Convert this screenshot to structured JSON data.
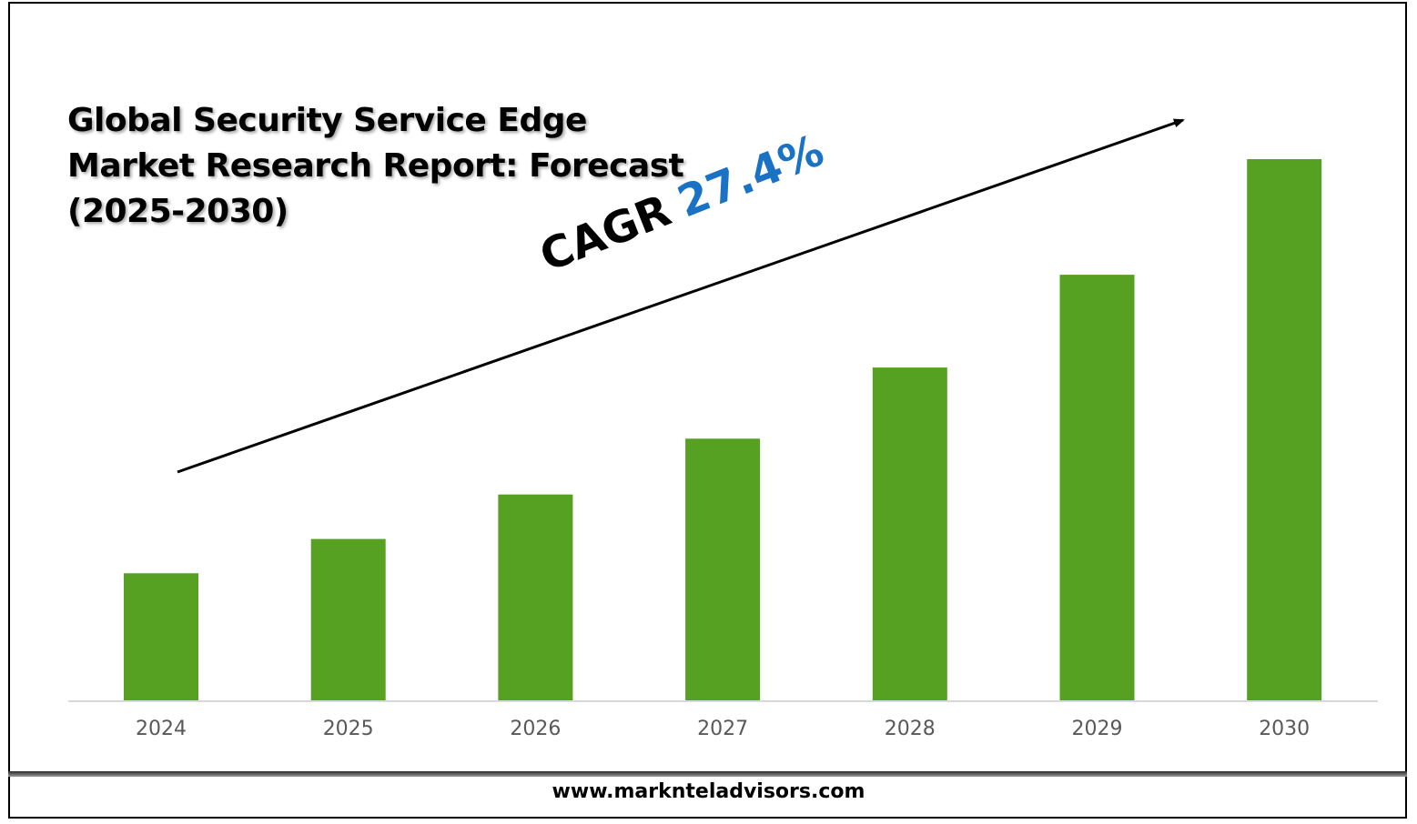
{
  "chart_data": {
    "type": "bar",
    "title": "Global Security Service Edge Market Research Report: Forecast (2025-2030)",
    "categories": [
      "2024",
      "2025",
      "2026",
      "2027",
      "2028",
      "2029",
      "2030"
    ],
    "values": [
      1.0,
      1.27,
      1.62,
      2.06,
      2.62,
      3.35,
      4.26
    ],
    "bar_color": "#56a022",
    "xlabel": "",
    "ylabel": "",
    "grid": false,
    "y_axis_shown": false,
    "annotation": {
      "label": "CAGR",
      "value": "27.4%",
      "label_color": "#000000",
      "value_color": "#1a72c4"
    }
  },
  "title_lines": [
    "Global Security Service Edge",
    "Market Research Report: Forecast",
    "(2025-2030)"
  ],
  "footer": {
    "url": "www.marknteladvisors.com"
  }
}
